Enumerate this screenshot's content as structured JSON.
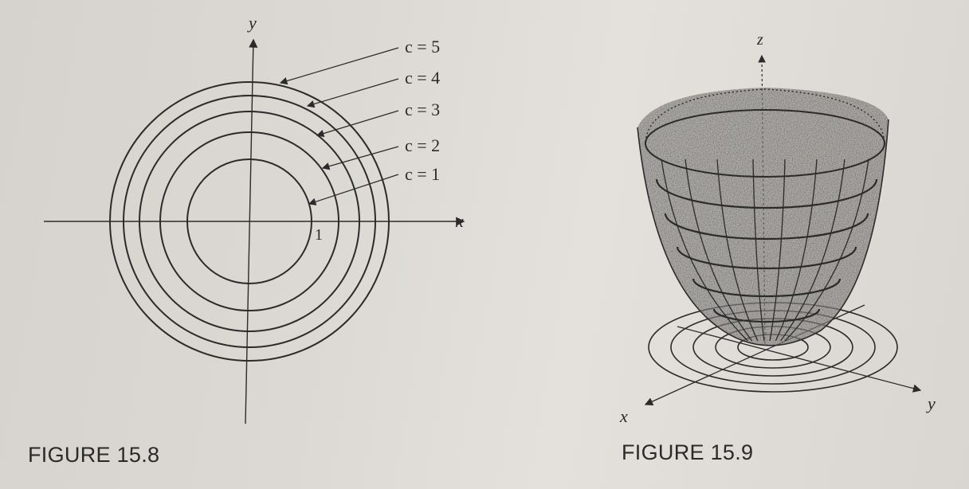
{
  "figure_left": {
    "caption": "FIGURE 15.8",
    "x_axis_label": "x",
    "y_axis_label": "y",
    "tick_label": "1",
    "contours": [
      {
        "label": "c = 5",
        "level": 5
      },
      {
        "label": "c = 4",
        "level": 4
      },
      {
        "label": "c = 3",
        "level": 3
      },
      {
        "label": "c = 2",
        "level": 2
      },
      {
        "label": "c = 1",
        "level": 1
      }
    ]
  },
  "figure_right": {
    "caption": "FIGURE 15.9",
    "x_axis_label": "x",
    "y_axis_label": "y",
    "z_axis_label": "z"
  }
}
